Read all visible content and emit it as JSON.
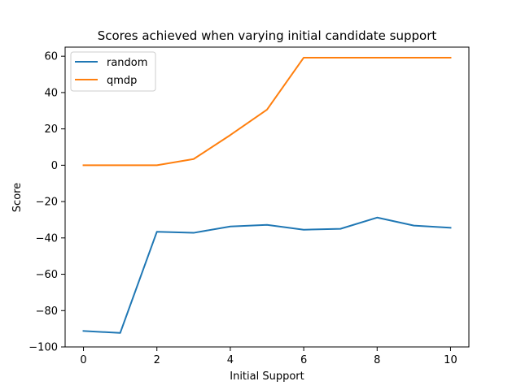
{
  "chart_data": {
    "type": "line",
    "title": "Scores achieved when varying initial candidate support",
    "xlabel": "Initial Support",
    "ylabel": "Score",
    "x": [
      0,
      1,
      2,
      3,
      4,
      5,
      6,
      7,
      8,
      9,
      10
    ],
    "xlim": [
      -0.5,
      10.5
    ],
    "ylim": [
      -100,
      65
    ],
    "xticks": [
      "0",
      "2",
      "4",
      "6",
      "8",
      "10"
    ],
    "yticks": [
      "−100",
      "−80",
      "−60",
      "−40",
      "−20",
      "0",
      "20",
      "40",
      "60"
    ],
    "grid": false,
    "legend_position": "top-left",
    "series": [
      {
        "name": "random",
        "color": "#1f77b4",
        "values": [
          -91.2,
          -92.3,
          -36.6,
          -37.2,
          -33.7,
          -32.8,
          -35.5,
          -35.0,
          -28.8,
          -33.2,
          -34.4
        ]
      },
      {
        "name": "qmdp",
        "color": "#ff7f0e",
        "values": [
          0,
          0,
          0,
          3.4,
          16.6,
          30.6,
          59.2,
          59.2,
          59.2,
          59.2,
          59.2
        ]
      }
    ]
  }
}
